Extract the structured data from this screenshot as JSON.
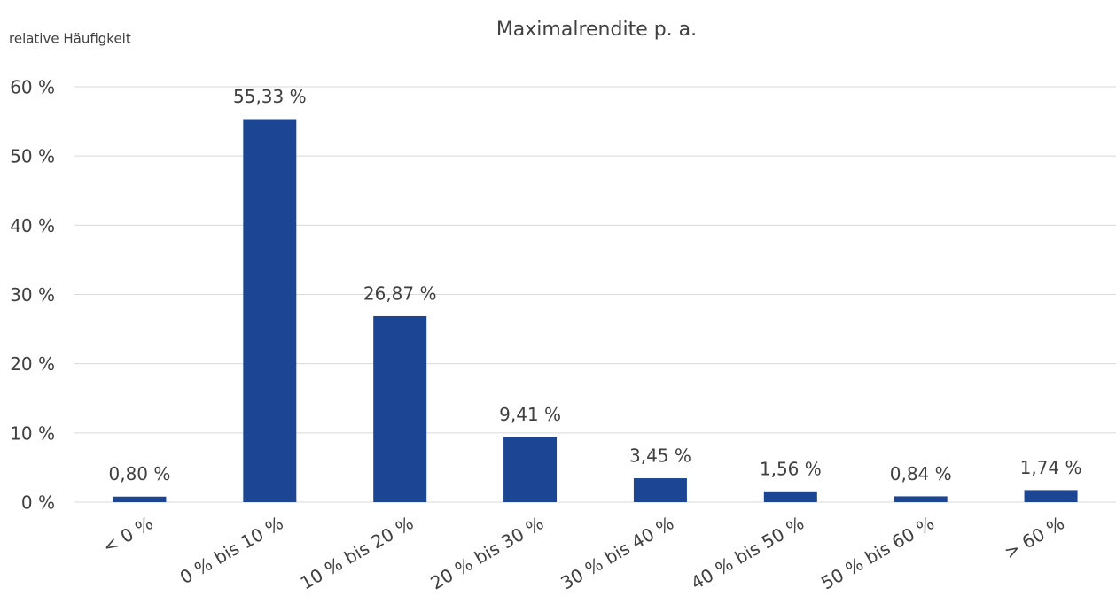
{
  "chart_data": {
    "type": "bar",
    "title": "Maximalrendite p. a.",
    "y_label": "relative Häufigkeit",
    "categories": [
      "< 0 %",
      "0 % bis 10 %",
      "10 % bis 20 %",
      "20 % bis 30 %",
      "30 % bis 40 %",
      "40 % bis 50 %",
      "50 % bis 60 %",
      "> 60 %"
    ],
    "values": [
      0.8,
      55.33,
      26.87,
      9.41,
      3.45,
      1.56,
      0.84,
      1.74
    ],
    "value_labels": [
      "0,80 %",
      "55,33 %",
      "26,87 %",
      "9,41 %",
      "3,45 %",
      "1,56 %",
      "0,84 %",
      "1,74 %"
    ],
    "color": "#1c4694",
    "ylim": [
      0,
      60
    ],
    "yticks": [
      {
        "value": 0,
        "label": "0 %"
      },
      {
        "value": 10,
        "label": "10 %"
      },
      {
        "value": 20,
        "label": "20 %"
      },
      {
        "value": 30,
        "label": "30 %"
      },
      {
        "value": 40,
        "label": "40 %"
      },
      {
        "value": 50,
        "label": "50 %"
      },
      {
        "value": 60,
        "label": "60 %"
      }
    ],
    "grid": true
  }
}
